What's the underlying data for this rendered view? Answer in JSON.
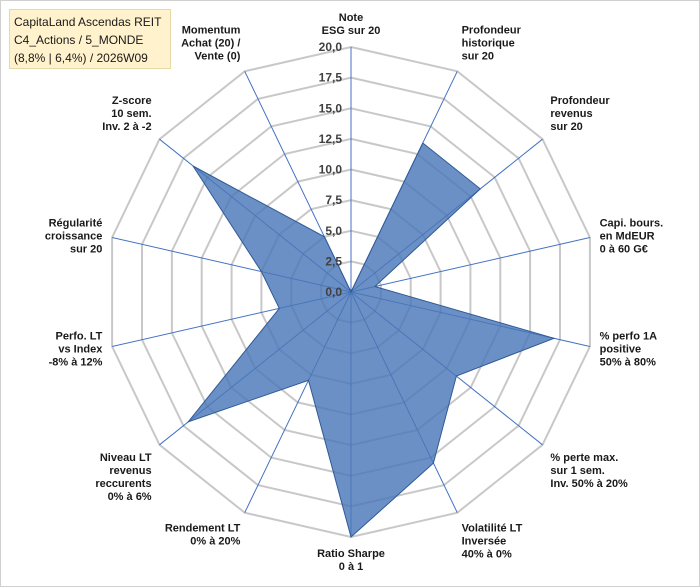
{
  "title": {
    "line1": "CapitaLand Ascendas REIT",
    "line2": "C4_Actions / 5_MONDE",
    "line3": "(8,8% | 6,4%) / 2026W09"
  },
  "colors": {
    "fill": "#4a78b8",
    "fill_opacity": 0.82,
    "stroke": "#2f5a96",
    "grid": "#c8c8c8",
    "spoke": "#4472c4"
  },
  "chart_data": {
    "type": "radar",
    "title": "CapitaLand Ascendas REIT",
    "rmin": 0,
    "rmax": 20,
    "grid": true,
    "ticks": [
      "0,0",
      "2,5",
      "5,0",
      "7,5",
      "10,0",
      "12,5",
      "15,0",
      "17,5",
      "20,0"
    ],
    "axes": [
      {
        "label": [
          "Note",
          "ESG sur 20"
        ],
        "value": 0
      },
      {
        "label": [
          "Profondeur",
          "historique",
          "sur 20"
        ],
        "value": 13.5
      },
      {
        "label": [
          "Profondeur",
          "revenus",
          "sur 20"
        ],
        "value": 13.5
      },
      {
        "label": [
          "Capi. bours.",
          "en MdEUR",
          "0 à 60 G€"
        ],
        "value": 2.0
      },
      {
        "label": [
          "% perfo 1A",
          "positive",
          "50% à 80%"
        ],
        "value": 17.0
      },
      {
        "label": [
          "% perte max.",
          "sur 1 sem.",
          "Inv. 50% à 20%"
        ],
        "value": 11.0
      },
      {
        "label": [
          "Volatilité LT",
          "Inversée",
          "40% à 0%"
        ],
        "value": 15.5
      },
      {
        "label": [
          "Ratio Sharpe",
          "0 à 1"
        ],
        "value": 20.0
      },
      {
        "label": [
          "Rendement LT",
          "0% à 20%"
        ],
        "value": 8.0
      },
      {
        "label": [
          "Niveau LT",
          "revenus",
          "reccurents",
          "0% à 6%"
        ],
        "value": 17.0
      },
      {
        "label": [
          "Perfo. LT",
          "vs Index",
          "-8% à 12%"
        ],
        "value": 6.0
      },
      {
        "label": [
          "Régularité",
          "croissance",
          "sur 20"
        ],
        "value": 7.5
      },
      {
        "label": [
          "Z-score",
          "10 sem.",
          "Inv. 2 à -2"
        ],
        "value": 16.5
      },
      {
        "label": [
          "Momentum",
          "Achat (20) /",
          "Vente (0)"
        ],
        "value": 5.0
      }
    ]
  }
}
